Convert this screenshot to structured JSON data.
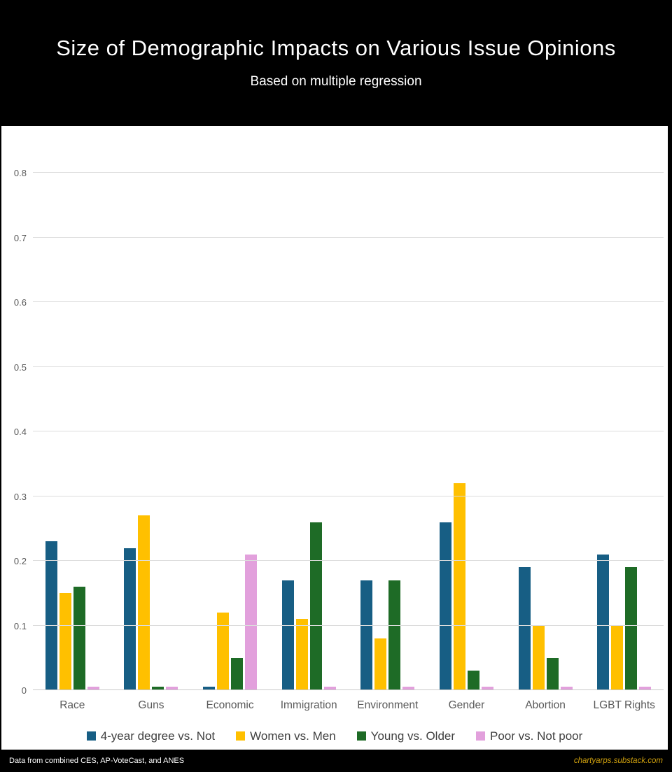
{
  "header": {
    "title": "Size of Demographic Impacts on Various Issue Opinions",
    "subtitle": "Based on multiple regression"
  },
  "chart_data": {
    "type": "bar",
    "title": "Size of Demographic Impacts on Various Issue Opinions",
    "subtitle": "Based on multiple regression",
    "categories": [
      "Race",
      "Guns",
      "Economic",
      "Immigration",
      "Environment",
      "Gender",
      "Abortion",
      "LGBT Rights"
    ],
    "series": [
      {
        "name": "4-year degree vs. Not",
        "color": "#175E84",
        "values": [
          0.23,
          0.22,
          0.005,
          0.17,
          0.17,
          0.26,
          0.19,
          0.21
        ]
      },
      {
        "name": "Women vs. Men",
        "color": "#FFC000",
        "values": [
          0.15,
          0.27,
          0.12,
          0.11,
          0.08,
          0.32,
          0.1,
          0.1
        ]
      },
      {
        "name": "Young vs. Older",
        "color": "#1E6B26",
        "values": [
          0.16,
          0.005,
          0.05,
          0.26,
          0.17,
          0.03,
          0.05,
          0.19
        ]
      },
      {
        "name": "Poor vs. Not poor",
        "color": "#E2A0DC",
        "values": [
          0.005,
          0.005,
          0.21,
          0.005,
          0.005,
          0.005,
          0.005,
          0.005
        ]
      }
    ],
    "xlabel": "",
    "ylabel": "",
    "ylim": [
      0,
      0.87
    ],
    "yticks": [
      0,
      0.1,
      0.2,
      0.3,
      0.4,
      0.5,
      0.6,
      0.7,
      0.8
    ],
    "grid": true,
    "legend_position": "bottom",
    "axis_text_color": "#595959",
    "gridline_color": "#dcdcdc"
  },
  "footer": {
    "source": "Data from combined CES, AP-VoteCast, and ANES",
    "credit": "chartyarps.substack.com"
  }
}
